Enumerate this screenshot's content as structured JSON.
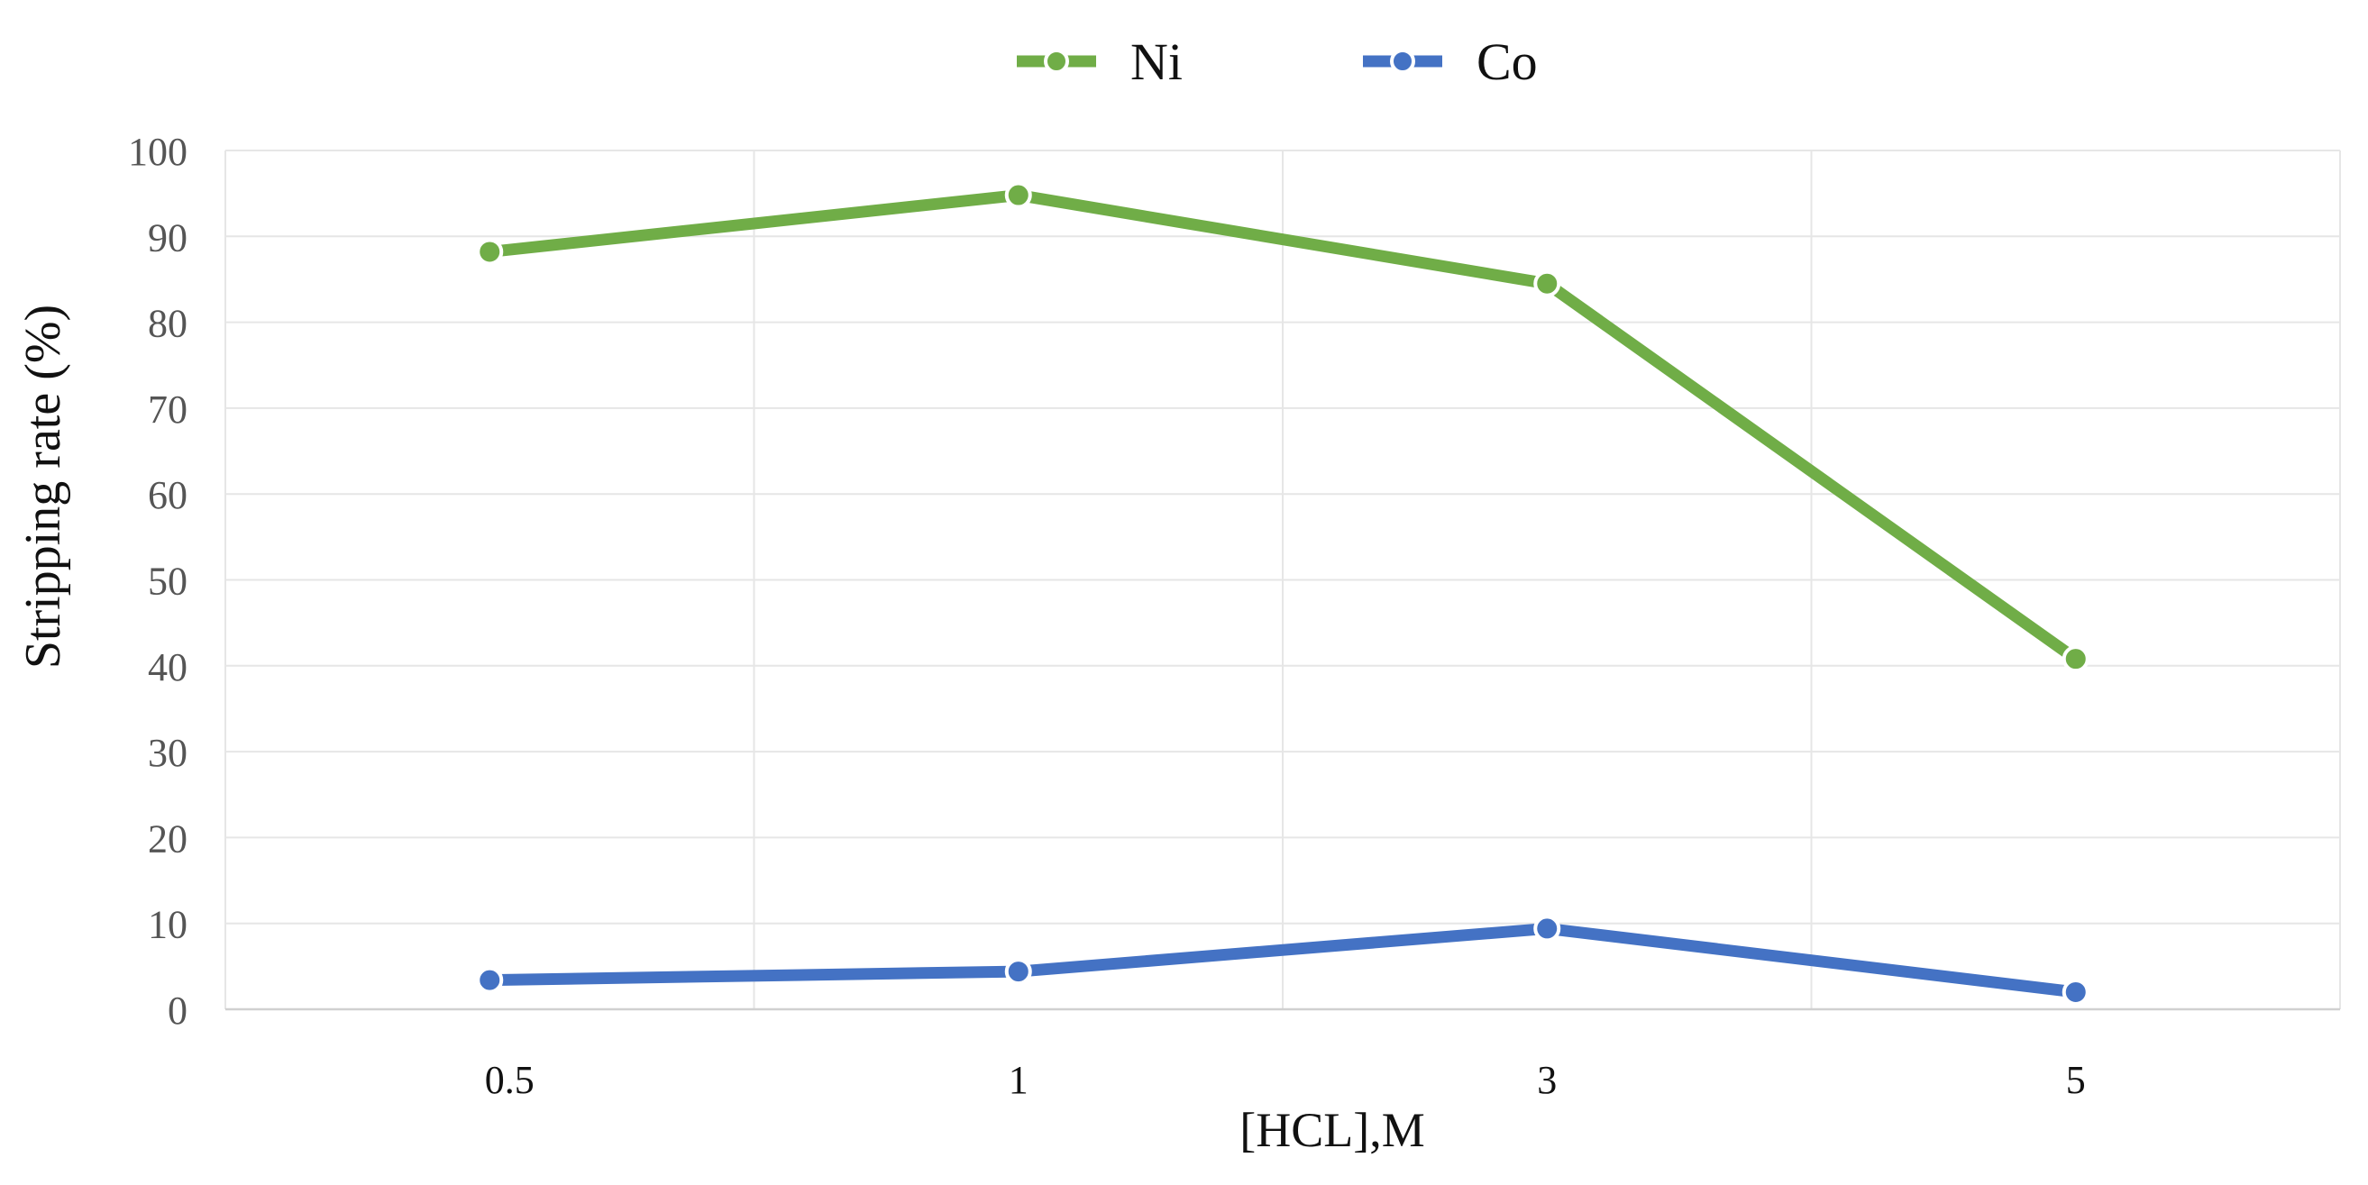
{
  "chart_data": {
    "type": "line",
    "x_categories": [
      "0.5",
      "1",
      "3",
      "5"
    ],
    "series": [
      {
        "name": "Ni",
        "color": "#70ad47",
        "values": [
          88.2,
          94.8,
          84.5,
          40.8
        ]
      },
      {
        "name": "Co",
        "color": "#4472c4",
        "values": [
          3.4,
          4.4,
          9.4,
          2.0
        ]
      }
    ],
    "xlabel": "[HCL],M",
    "ylabel": "Stripping rate (%)",
    "ylim": [
      0,
      100
    ],
    "y_ticks": [
      "0",
      "10",
      "20",
      "30",
      "40",
      "50",
      "60",
      "70",
      "80",
      "90",
      "100"
    ],
    "grid": true,
    "legend_position": "top-center",
    "markers": "circle"
  }
}
